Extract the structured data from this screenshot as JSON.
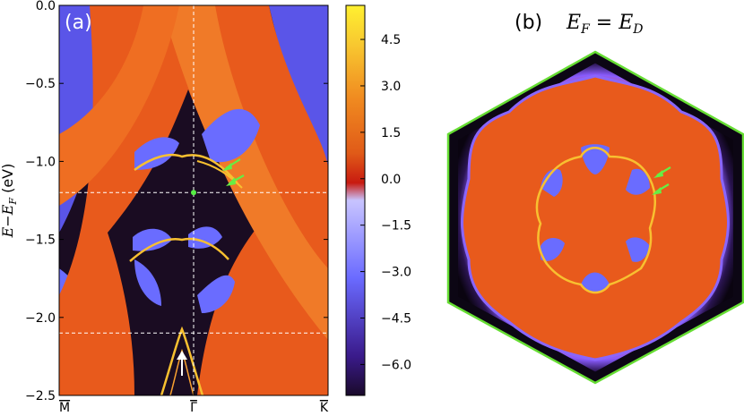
{
  "chart_data": [
    {
      "type": "heatmap",
      "panel_label": "(a)",
      "ylabel": "E−E",
      "ylabel_sub": "F",
      "ylabel_unit": " (eV)",
      "ylim": [
        -2.5,
        0.0
      ],
      "yticks": [
        "0.0",
        "−0.5",
        "−1.0",
        "−1.5",
        "−2.0",
        "−2.5"
      ],
      "ytick_values": [
        0.0,
        -0.5,
        -1.0,
        -1.5,
        -2.0,
        -2.5
      ],
      "xticks": [
        "M",
        "Γ",
        "K"
      ],
      "xtick_positions": [
        0.0,
        0.5,
        1.0
      ],
      "dashed_lines_energy": [
        -1.2,
        -2.1
      ],
      "dashed_line_k": 0.5,
      "marker": {
        "k": 0.5,
        "energy": -1.2,
        "color": "#55ee44"
      },
      "green_arrows": 2,
      "white_arrows": 1,
      "colorbar": {
        "ticks": [
          "4.5",
          "3.0",
          "1.5",
          "0.0",
          "−1.5",
          "−3.0",
          "−4.5",
          "−6.0"
        ],
        "tick_values": [
          4.5,
          3.0,
          1.5,
          0.0,
          -1.5,
          -3.0,
          -4.5,
          -6.0
        ],
        "range": [
          -7.0,
          5.6
        ],
        "stops": [
          "#1a0a2a",
          "#3a1a8a",
          "#6a6aff",
          "#c8c4ff",
          "#c81a10",
          "#e05a18",
          "#f08a20",
          "#f8c830",
          "#fff030"
        ]
      }
    },
    {
      "type": "heatmap",
      "panel_label": "(b)",
      "title_lhs": "E",
      "title_lhs_sub": "F",
      "title_eq": " = ",
      "title_rhs": "E",
      "title_rhs_sub": "D",
      "border_color": "#66dd33",
      "green_arrows": 2
    }
  ],
  "colors": {
    "orange_fill": "#e85a1c",
    "orange_band": "#f07a28",
    "blue_gap": "#6a6cff",
    "dark_gap": "#120a1c",
    "arrow_green": "#66ee44",
    "arrow_white": "#ffffff"
  }
}
